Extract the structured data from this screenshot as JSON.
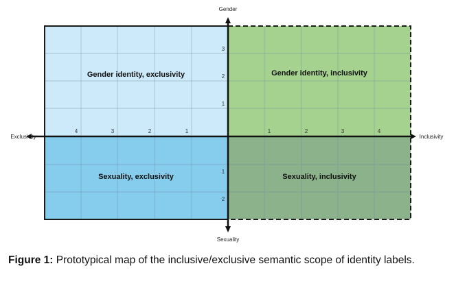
{
  "axes": {
    "top": "Gender",
    "bottom": "Sexuality",
    "left": "Exclusivity",
    "right": "Inclusivity"
  },
  "ticks": {
    "left": [
      "4",
      "3",
      "2",
      "1"
    ],
    "right": [
      "1",
      "2",
      "3",
      "4"
    ],
    "up": [
      "3",
      "2",
      "1"
    ],
    "down": [
      "1",
      "2"
    ]
  },
  "quadrants": {
    "top_left": "Gender identity, exclusivity",
    "top_right": "Gender identity, inclusivity",
    "bottom_left": "Sexuality, exclusivity",
    "bottom_right": "Sexuality, inclusivity"
  },
  "caption": {
    "label": "Figure 1:",
    "text": " Prototypical map of the inclusive/exclusive semantic scope of identity labels."
  },
  "colors": {
    "top_left": "#cdeafa",
    "top_right": "#a5d28f",
    "bottom_left": "#86ccec",
    "bottom_right": "#8bb28a"
  }
}
